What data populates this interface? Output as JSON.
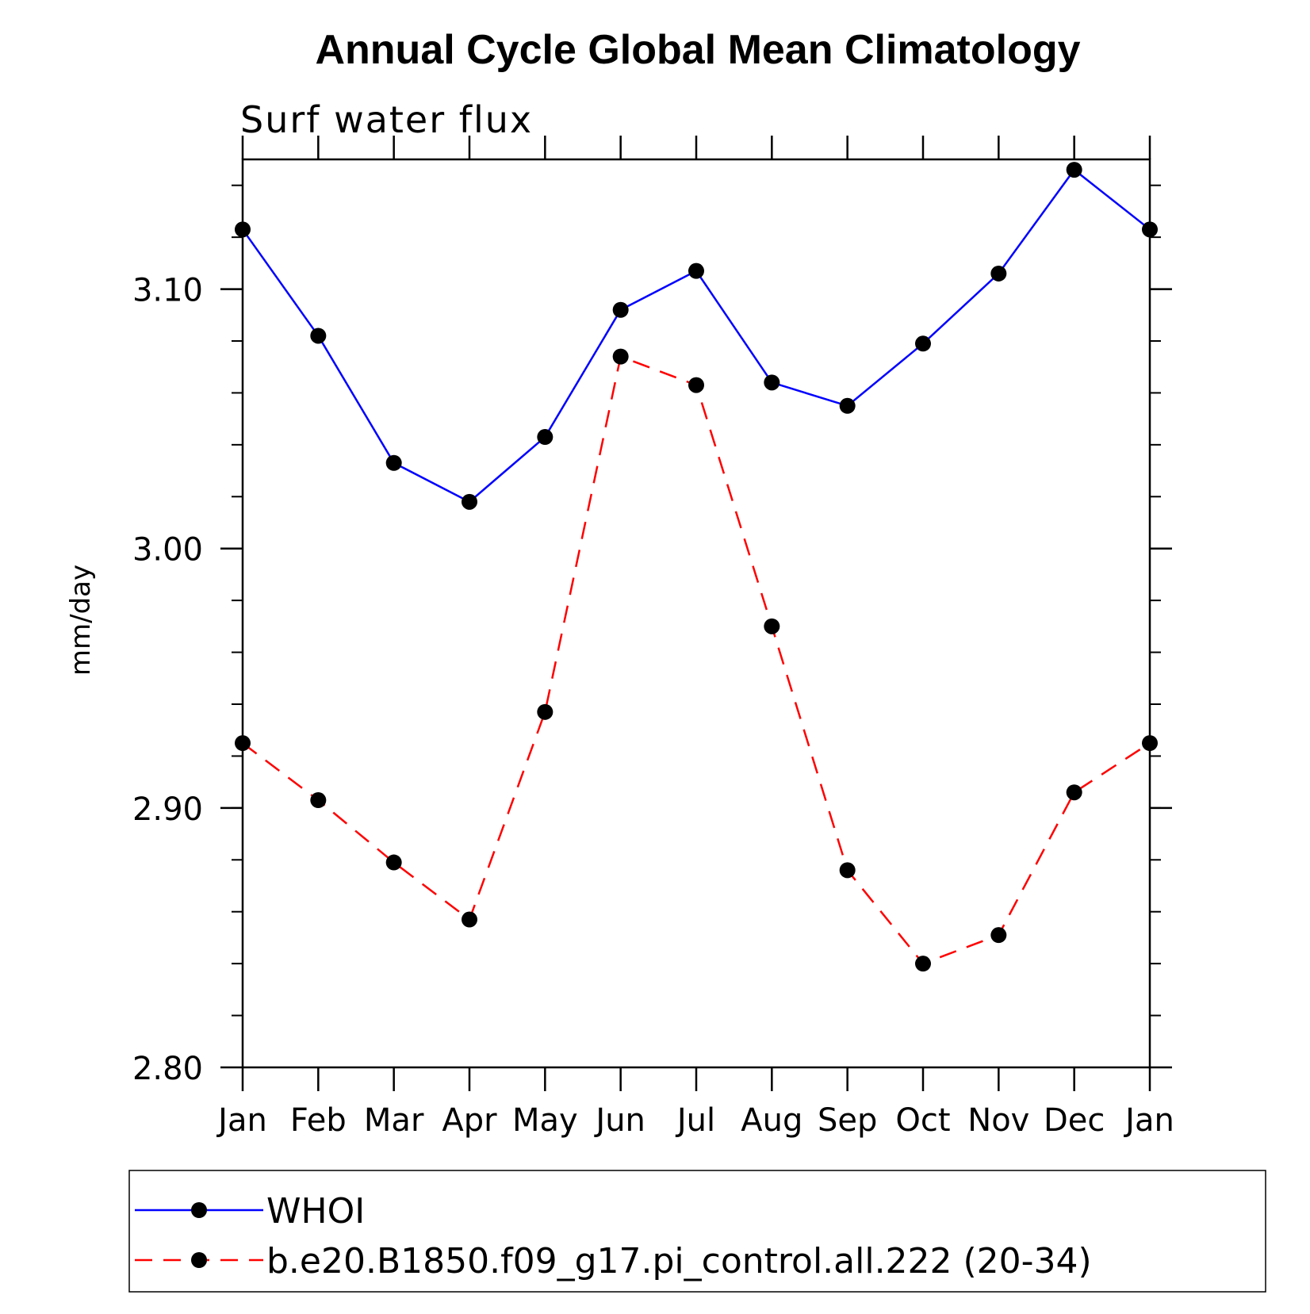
{
  "chart_data": {
    "type": "line",
    "title": "Annual Cycle Global Mean Climatology",
    "subtitle": "Surf water flux",
    "xlabel": "",
    "ylabel": "mm/day",
    "categories": [
      "Jan",
      "Feb",
      "Mar",
      "Apr",
      "May",
      "Jun",
      "Jul",
      "Aug",
      "Sep",
      "Oct",
      "Nov",
      "Dec",
      "Jan"
    ],
    "ylim": [
      2.8,
      3.15
    ],
    "yticks": [
      2.8,
      2.9,
      3.0,
      3.1
    ],
    "ytick_labels": [
      "2.80",
      "2.90",
      "3.00",
      "3.10"
    ],
    "y_minor_step": 0.02,
    "grid": false,
    "legend_position": "bottom",
    "series": [
      {
        "name": "WHOI",
        "color": "#0000ff",
        "line_style": "solid",
        "marker": "filled-circle",
        "values": [
          3.123,
          3.082,
          3.033,
          3.018,
          3.043,
          3.092,
          3.107,
          3.064,
          3.055,
          3.079,
          3.106,
          3.146,
          3.123
        ]
      },
      {
        "name": "b.e20.B1850.f09_g17.pi_control.all.222 (20-34)",
        "color": "#ff0000",
        "line_style": "dashed",
        "marker": "filled-circle",
        "values": [
          2.925,
          2.903,
          2.879,
          2.857,
          2.937,
          3.074,
          3.063,
          2.97,
          2.876,
          2.84,
          2.851,
          2.906,
          2.925
        ]
      }
    ]
  }
}
